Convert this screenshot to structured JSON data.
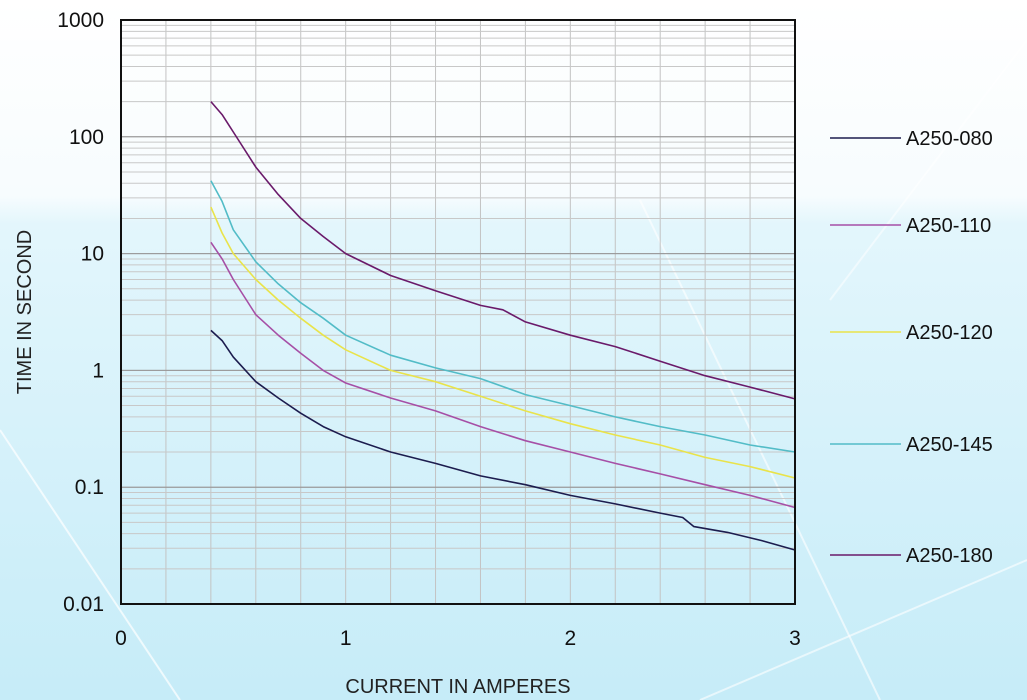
{
  "chart_data": {
    "type": "line",
    "title": "",
    "xlabel": "CURRENT IN AMPERES",
    "ylabel": "TIME IN SECOND",
    "xlim": [
      0,
      3
    ],
    "ylim": [
      0.01,
      1000
    ],
    "yscale": "log",
    "grid": true,
    "legend_position": "right",
    "x_ticks": [
      "0",
      "1",
      "2",
      "3"
    ],
    "y_ticks": [
      "0.01",
      "0.1",
      "1",
      "10",
      "100",
      "1000"
    ],
    "series": [
      {
        "name": "A250-080",
        "color": "#1c1c4e",
        "points": [
          [
            0.4,
            2.2
          ],
          [
            0.45,
            1.8
          ],
          [
            0.5,
            1.3
          ],
          [
            0.6,
            0.8
          ],
          [
            0.7,
            0.58
          ],
          [
            0.8,
            0.43
          ],
          [
            0.9,
            0.33
          ],
          [
            1.0,
            0.27
          ],
          [
            1.2,
            0.2
          ],
          [
            1.4,
            0.16
          ],
          [
            1.6,
            0.125
          ],
          [
            1.8,
            0.105
          ],
          [
            2.0,
            0.085
          ],
          [
            2.2,
            0.072
          ],
          [
            2.4,
            0.06
          ],
          [
            2.5,
            0.055
          ],
          [
            2.55,
            0.046
          ],
          [
            2.7,
            0.041
          ],
          [
            2.85,
            0.035
          ],
          [
            3.0,
            0.029
          ]
        ]
      },
      {
        "name": "A250-110",
        "color": "#a64fa6",
        "points": [
          [
            0.4,
            12.5
          ],
          [
            0.45,
            9
          ],
          [
            0.5,
            6
          ],
          [
            0.6,
            3
          ],
          [
            0.7,
            2
          ],
          [
            0.8,
            1.4
          ],
          [
            0.9,
            1.0
          ],
          [
            1.0,
            0.78
          ],
          [
            1.2,
            0.58
          ],
          [
            1.4,
            0.45
          ],
          [
            1.6,
            0.33
          ],
          [
            1.8,
            0.25
          ],
          [
            2.0,
            0.2
          ],
          [
            2.2,
            0.16
          ],
          [
            2.4,
            0.13
          ],
          [
            2.6,
            0.105
          ],
          [
            2.8,
            0.085
          ],
          [
            3.0,
            0.067
          ]
        ]
      },
      {
        "name": "A250-120",
        "color": "#e9e34a",
        "points": [
          [
            0.4,
            25
          ],
          [
            0.45,
            15
          ],
          [
            0.5,
            10
          ],
          [
            0.6,
            6
          ],
          [
            0.7,
            4
          ],
          [
            0.8,
            2.8
          ],
          [
            0.9,
            2.0
          ],
          [
            1.0,
            1.5
          ],
          [
            1.2,
            1.0
          ],
          [
            1.4,
            0.8
          ],
          [
            1.6,
            0.6
          ],
          [
            1.8,
            0.45
          ],
          [
            2.0,
            0.35
          ],
          [
            2.2,
            0.28
          ],
          [
            2.4,
            0.23
          ],
          [
            2.6,
            0.18
          ],
          [
            2.8,
            0.15
          ],
          [
            3.0,
            0.12
          ]
        ]
      },
      {
        "name": "A250-145",
        "color": "#52bcc7",
        "points": [
          [
            0.4,
            42
          ],
          [
            0.45,
            28
          ],
          [
            0.5,
            16
          ],
          [
            0.6,
            8.5
          ],
          [
            0.7,
            5.5
          ],
          [
            0.8,
            3.8
          ],
          [
            0.9,
            2.8
          ],
          [
            1.0,
            2.0
          ],
          [
            1.2,
            1.35
          ],
          [
            1.4,
            1.05
          ],
          [
            1.6,
            0.85
          ],
          [
            1.8,
            0.62
          ],
          [
            2.0,
            0.5
          ],
          [
            2.2,
            0.4
          ],
          [
            2.4,
            0.33
          ],
          [
            2.6,
            0.28
          ],
          [
            2.8,
            0.23
          ],
          [
            3.0,
            0.2
          ]
        ]
      },
      {
        "name": "A250-180",
        "color": "#6a1a6a",
        "points": [
          [
            0.4,
            200
          ],
          [
            0.45,
            155
          ],
          [
            0.5,
            110
          ],
          [
            0.6,
            55
          ],
          [
            0.7,
            32
          ],
          [
            0.8,
            20
          ],
          [
            0.9,
            14
          ],
          [
            1.0,
            10
          ],
          [
            1.2,
            6.5
          ],
          [
            1.4,
            4.8
          ],
          [
            1.6,
            3.6
          ],
          [
            1.7,
            3.3
          ],
          [
            1.8,
            2.6
          ],
          [
            2.0,
            2.0
          ],
          [
            2.2,
            1.6
          ],
          [
            2.4,
            1.2
          ],
          [
            2.6,
            0.9
          ],
          [
            2.8,
            0.72
          ],
          [
            3.0,
            0.57
          ]
        ]
      }
    ]
  }
}
